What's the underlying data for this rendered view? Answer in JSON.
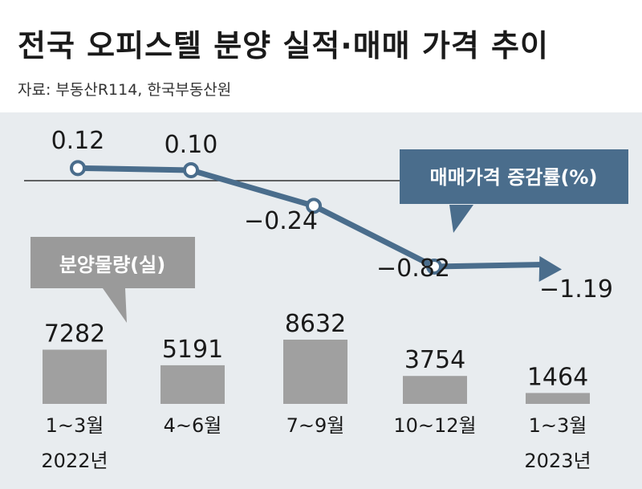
{
  "title": "전국 오피스텔 분양 실적·매매 가격 추이",
  "source": "자료: 부동산R114, 한국부동산원",
  "chart_data": {
    "type": "bar+line",
    "categories": [
      "1~3월",
      "4~6월",
      "7~9월",
      "10~12월",
      "1~3월"
    ],
    "years": [
      "2022년",
      "",
      "",
      "",
      "2023년"
    ],
    "series": [
      {
        "name": "분양물량(실)",
        "type": "bar",
        "values": [
          7282,
          5191,
          8632,
          3754,
          1464
        ],
        "color": "#a0a0a0"
      },
      {
        "name": "매매가격 증감률(%)",
        "type": "line",
        "values": [
          0.12,
          0.1,
          -0.24,
          -0.82,
          -1.19
        ],
        "labels": [
          "0.12",
          "0.10",
          "−0.24",
          "−0.82",
          "−1.19"
        ],
        "color": "#4a6d8c"
      }
    ],
    "legend_position": "inline-callouts"
  },
  "colors": {
    "background": "#e8ecef",
    "line": "#4a6d8c",
    "bar": "#a0a0a0",
    "bar_callout": "#9a9a9a"
  }
}
